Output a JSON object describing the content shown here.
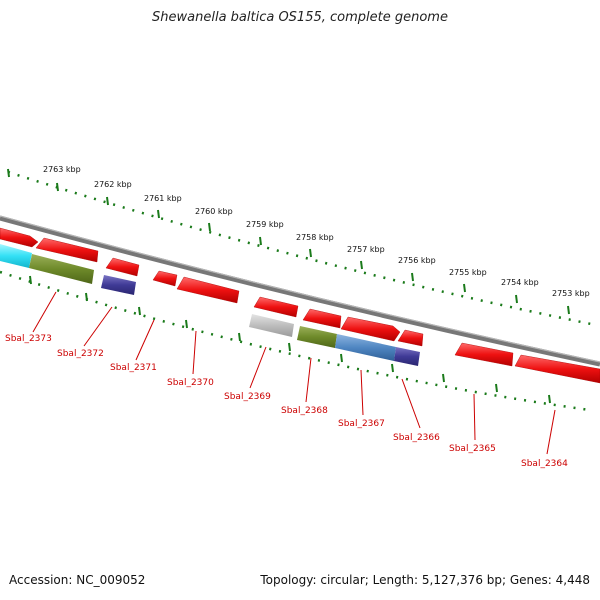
{
  "title": "Shewanella baltica OS155, complete genome",
  "accession": "Accession: NC_009052",
  "topology": "Topology: circular; Length: 5,127,376 bp; Genes: 4,448",
  "colors": {
    "forward": "#ee1111",
    "backbone": "#888888",
    "tick": "#1a7a1a",
    "label": "#cc0000"
  },
  "ruler": {
    "ticks": [
      {
        "kbp": 2763,
        "text": "2763 kbp"
      },
      {
        "kbp": 2762,
        "text": "2762 kbp"
      },
      {
        "kbp": 2761,
        "text": "2761 kbp"
      },
      {
        "kbp": 2760,
        "text": "2760 kbp"
      },
      {
        "kbp": 2759,
        "text": "2759 kbp"
      },
      {
        "kbp": 2758,
        "text": "2758 kbp"
      },
      {
        "kbp": 2757,
        "text": "2757 kbp"
      },
      {
        "kbp": 2756,
        "text": "2756 kbp"
      },
      {
        "kbp": 2755,
        "text": "2755 kbp"
      },
      {
        "kbp": 2754,
        "text": "2754 kbp"
      },
      {
        "kbp": 2753,
        "text": "2753 kbp"
      }
    ]
  },
  "genes": [
    {
      "tag": "Sbal_2373"
    },
    {
      "tag": "Sbal_2372"
    },
    {
      "tag": "Sbal_2371"
    },
    {
      "tag": "Sbal_2370"
    },
    {
      "tag": "Sbal_2369"
    },
    {
      "tag": "Sbal_2368"
    },
    {
      "tag": "Sbal_2367"
    },
    {
      "tag": "Sbal_2366"
    },
    {
      "tag": "Sbal_2365"
    },
    {
      "tag": "Sbal_2364"
    }
  ]
}
